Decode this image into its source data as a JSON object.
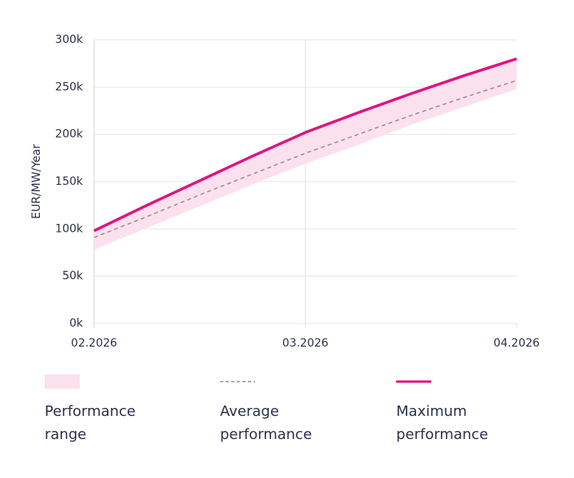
{
  "chart_data": {
    "type": "line",
    "y_label": "EUR/MW/Year",
    "categories": [
      "02.2026",
      null,
      null,
      null,
      "03.2026",
      null,
      null,
      null,
      "04.2026"
    ],
    "ylim": [
      0,
      300000
    ],
    "yticks": [
      {
        "value": 0,
        "label": "0k"
      },
      {
        "value": 50000,
        "label": "50k"
      },
      {
        "value": 100000,
        "label": "100k"
      },
      {
        "value": 150000,
        "label": "150k"
      },
      {
        "value": 200000,
        "label": "200k"
      },
      {
        "value": 250000,
        "label": "250k"
      },
      {
        "value": 300000,
        "label": "300k"
      }
    ],
    "grid": true,
    "range": {
      "name": "Performance range",
      "color": "#fbe0ee",
      "low": [
        78000,
        101000,
        124000,
        147000,
        169000,
        189000,
        210000,
        229000,
        248000
      ],
      "high": [
        98000,
        125000,
        151000,
        177000,
        202000,
        223000,
        243000,
        262000,
        280000
      ]
    },
    "series": [
      {
        "name": "Average performance",
        "color": "#9c8c95",
        "dashed": true,
        "values": [
          91000,
          113000,
          136000,
          158000,
          180000,
          200000,
          220000,
          239000,
          257000
        ]
      },
      {
        "name": "Maximum performance",
        "color": "#e0137f",
        "dashed": false,
        "values": [
          98000,
          125000,
          151000,
          177000,
          202000,
          223000,
          243000,
          262000,
          280000
        ]
      }
    ]
  }
}
